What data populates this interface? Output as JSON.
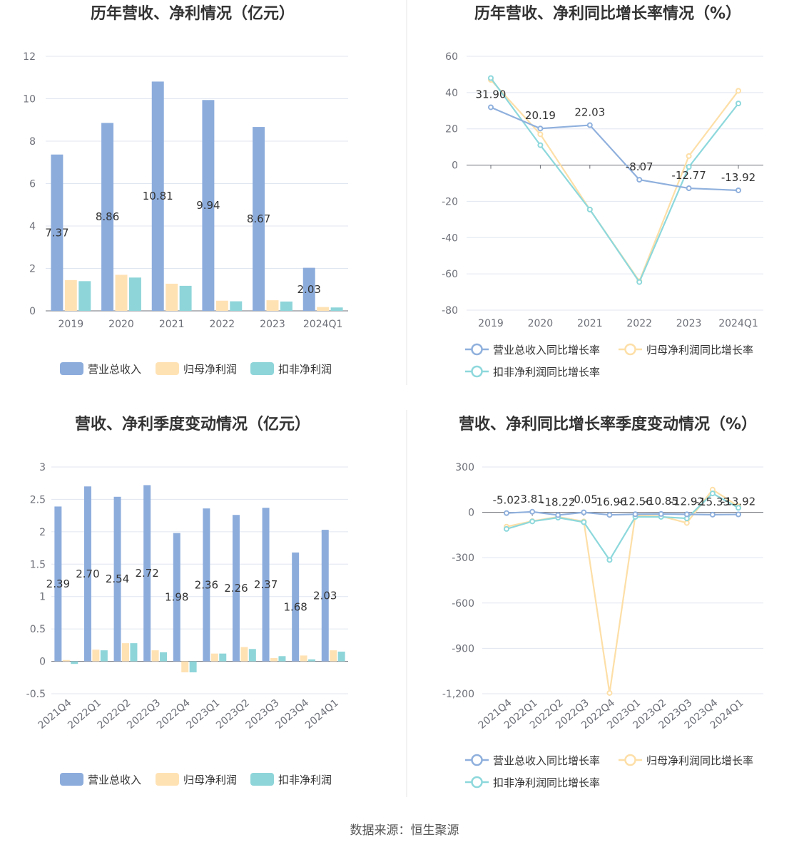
{
  "source_label": "数据来源：恒生聚源",
  "colors": {
    "revenue": "#8fb0dd",
    "net_profit": "#fddfa7",
    "deducted_profit": "#8dd8dc",
    "revenue_bar": "#8cacdc",
    "net_bar": "#ffe2b4",
    "deducted_bar": "#8ed5d9"
  },
  "chart_data": [
    {
      "id": "annual",
      "type": "bar",
      "title": "历年营收、净利情况（亿元）",
      "categories": [
        "2019",
        "2020",
        "2021",
        "2022",
        "2023",
        "2024Q1"
      ],
      "ylim": [
        0,
        12
      ],
      "yticks": [
        0,
        2,
        4,
        6,
        8,
        10,
        12
      ],
      "ytick_labels": [
        "0",
        "2",
        "4",
        "6",
        "8",
        "10",
        "12"
      ],
      "legend": "bottom",
      "series": [
        {
          "name": "营业总收入",
          "values": [
            7.37,
            8.86,
            10.81,
            9.94,
            8.67,
            2.03
          ],
          "labels": [
            "7.37",
            "8.86",
            "10.81",
            "9.94",
            "8.67",
            "2.03"
          ]
        },
        {
          "name": "归母净利润",
          "values": [
            1.45,
            1.7,
            1.28,
            0.48,
            0.5,
            0.18
          ]
        },
        {
          "name": "扣非净利润",
          "values": [
            1.4,
            1.57,
            1.18,
            0.45,
            0.44,
            0.16
          ]
        }
      ]
    },
    {
      "id": "annual_growth",
      "type": "line",
      "title": "历年营收、净利同比增长率情况（%）",
      "categories": [
        "2019",
        "2020",
        "2021",
        "2022",
        "2023",
        "2024Q1"
      ],
      "ylim": [
        -80,
        60
      ],
      "yticks": [
        -80,
        -60,
        -40,
        -20,
        0,
        20,
        40,
        60
      ],
      "ytick_labels": [
        "-80",
        "-60",
        "-40",
        "-20",
        "0",
        "20",
        "40",
        "60"
      ],
      "legend": "bottom",
      "series": [
        {
          "name": "营业总收入同比增长率",
          "values": [
            31.9,
            20.19,
            22.03,
            -8.07,
            -12.77,
            -13.92
          ],
          "labels": [
            "31.90",
            "20.19",
            "22.03",
            "-8.07",
            "-12.77",
            "-13.92"
          ]
        },
        {
          "name": "归母净利润同比增长率",
          "values": [
            47,
            17,
            -24.5,
            -64,
            5,
            41
          ]
        },
        {
          "name": "扣非净利润同比增长率",
          "values": [
            48,
            11,
            -24.5,
            -64.5,
            -1,
            34
          ]
        }
      ]
    },
    {
      "id": "quarterly",
      "type": "bar",
      "title": "营收、净利季度变动情况（亿元）",
      "categories": [
        "2021Q4",
        "2022Q1",
        "2022Q2",
        "2022Q3",
        "2022Q4",
        "2023Q1",
        "2023Q2",
        "2023Q3",
        "2023Q4",
        "2024Q1"
      ],
      "ylim": [
        -0.5,
        3
      ],
      "yticks": [
        -0.5,
        0,
        0.5,
        1,
        1.5,
        2,
        2.5,
        3
      ],
      "ytick_labels": [
        "-0.5",
        "0",
        "0.5",
        "1",
        "1.5",
        "2",
        "2.5",
        "3"
      ],
      "legend": "bottom",
      "series": [
        {
          "name": "营业总收入",
          "values": [
            2.39,
            2.7,
            2.54,
            2.72,
            1.98,
            2.36,
            2.26,
            2.37,
            1.68,
            2.03
          ],
          "labels": [
            "2.39",
            "2.70",
            "2.54",
            "2.72",
            "1.98",
            "2.36",
            "2.26",
            "2.37",
            "1.68",
            "2.03"
          ]
        },
        {
          "name": "归母净利润",
          "values": [
            0.02,
            0.18,
            0.28,
            0.17,
            -0.17,
            0.12,
            0.22,
            0.05,
            0.09,
            0.17
          ]
        },
        {
          "name": "扣非净利润",
          "values": [
            -0.04,
            0.17,
            0.28,
            0.14,
            -0.17,
            0.12,
            0.19,
            0.08,
            0.03,
            0.15
          ]
        }
      ]
    },
    {
      "id": "quarterly_growth",
      "type": "line",
      "title": "营收、净利同比增长率季度变动情况（%）",
      "categories": [
        "2021Q4",
        "2022Q1",
        "2022Q2",
        "2022Q3",
        "2022Q4",
        "2023Q1",
        "2023Q2",
        "2023Q3",
        "2023Q4",
        "2024Q1"
      ],
      "ylim": [
        -1200,
        300
      ],
      "yticks": [
        -1200,
        -900,
        -600,
        -300,
        0,
        300
      ],
      "ytick_labels": [
        "-1,200",
        "-900",
        "-600",
        "-300",
        "0",
        "300"
      ],
      "legend": "bottom",
      "series": [
        {
          "name": "营业总收入同比增长率",
          "values": [
            -5.02,
            3.81,
            -18.22,
            -0.05,
            -16.96,
            -12.56,
            -10.85,
            -12.92,
            -15.33,
            -13.92
          ],
          "labels": [
            "-5.02",
            "3.81",
            "-18.22",
            "-0.05",
            "-16.96",
            "-12.56",
            "-10.85",
            "-12.92",
            "-15.33",
            "-13.92"
          ]
        },
        {
          "name": "归母净利润同比增长率",
          "values": [
            -95,
            -58,
            -30,
            -60,
            -1195,
            -20,
            -25,
            -70,
            150,
            40
          ]
        },
        {
          "name": "扣非净利润同比增长率",
          "values": [
            -110,
            -60,
            -35,
            -65,
            -315,
            -30,
            -30,
            -40,
            125,
            30
          ]
        }
      ]
    }
  ]
}
